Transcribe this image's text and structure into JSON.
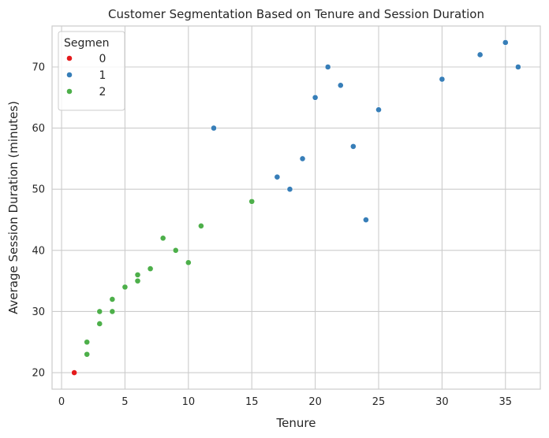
{
  "chart_data": {
    "type": "scatter",
    "title": "Customer Segmentation Based on Tenure and Session Duration",
    "xlabel": "Tenure",
    "ylabel": "Average Session Duration (minutes)",
    "xlim": [
      -0.75,
      37.75
    ],
    "ylim": [
      17.3,
      76.7
    ],
    "xticks": [
      0,
      5,
      10,
      15,
      20,
      25,
      30,
      35
    ],
    "yticks": [
      20,
      30,
      40,
      50,
      60,
      70
    ],
    "grid": true,
    "legend": {
      "title": "Segmen",
      "placement": "top-left"
    },
    "series": [
      {
        "name": "0",
        "color": "#e41a1c",
        "points": [
          [
            1,
            20
          ]
        ]
      },
      {
        "name": "1",
        "color": "#377eb8",
        "points": [
          [
            12,
            60
          ],
          [
            17,
            52
          ],
          [
            18,
            50
          ],
          [
            19,
            55
          ],
          [
            20,
            65
          ],
          [
            21,
            70
          ],
          [
            22,
            67
          ],
          [
            23,
            57
          ],
          [
            24,
            45
          ],
          [
            25,
            63
          ],
          [
            30,
            68
          ],
          [
            33,
            72
          ],
          [
            35,
            74
          ],
          [
            36,
            70
          ]
        ]
      },
      {
        "name": "2",
        "color": "#4daf4a",
        "points": [
          [
            2,
            23
          ],
          [
            2,
            25
          ],
          [
            3,
            28
          ],
          [
            3,
            30
          ],
          [
            4,
            30
          ],
          [
            4,
            32
          ],
          [
            5,
            34
          ],
          [
            6,
            35
          ],
          [
            6,
            36
          ],
          [
            7,
            37
          ],
          [
            8,
            42
          ],
          [
            9,
            40
          ],
          [
            10,
            38
          ],
          [
            11,
            44
          ],
          [
            15,
            48
          ]
        ]
      }
    ]
  }
}
